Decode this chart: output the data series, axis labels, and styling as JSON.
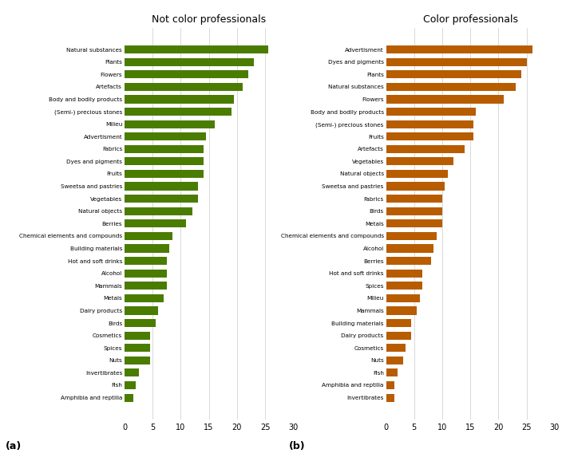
{
  "left_title": "Not color professionals",
  "right_title": "Color professionals",
  "left_label": "(a)",
  "right_label": "(b)",
  "left_color": "#4a7c00",
  "right_color": "#b85c00",
  "xlim": [
    0,
    30
  ],
  "xticks": [
    0,
    5,
    10,
    15,
    20,
    25,
    30
  ],
  "left_categories": [
    "Natural substances",
    "Plants",
    "Flowers",
    "Artefacts",
    "Body and bodily products",
    "(Semi-) precious stones",
    "Milieu",
    "Advertisment",
    "Fabrics",
    "Dyes and pigments",
    "Fruits",
    "Sweetsa and pastries",
    "Vegetables",
    "Natural objects",
    "Berries",
    "Chemical elements and compounds",
    "Building materials",
    "Hot and soft drinks",
    "Alcohol",
    "Mammals",
    "Metals",
    "Dairy products",
    "Birds",
    "Cosmetics",
    "Spices",
    "Nuts",
    "Invertibrates",
    "Fish",
    "Amphibia and reptilia"
  ],
  "left_values": [
    25.5,
    23.0,
    22.0,
    21.0,
    19.5,
    19.0,
    16.0,
    14.5,
    14.0,
    14.0,
    14.0,
    13.0,
    13.0,
    12.0,
    11.0,
    8.5,
    8.0,
    7.5,
    7.5,
    7.5,
    7.0,
    6.0,
    5.5,
    4.5,
    4.5,
    4.5,
    2.5,
    2.0,
    1.5
  ],
  "right_categories": [
    "Advertisment",
    "Dyes and pigments",
    "Plants",
    "Natural substances",
    "Flowers",
    "Body and bodily products",
    "(Semi-) precious stones",
    "Fruits",
    "Artefacts",
    "Vegetables",
    "Natural objects",
    "Sweetsa and pastries",
    "Fabrics",
    "Birds",
    "Metals",
    "Chemical elements and compounds",
    "Alcohol",
    "Berries",
    "Hot and soft drinks",
    "Spices",
    "Milieu",
    "Mammals",
    "Building materials",
    "Dairy products",
    "Cosmetics",
    "Nuts",
    "Fish",
    "Amphibia and reptilia",
    "Invertibrates"
  ],
  "right_values": [
    26.0,
    25.0,
    24.0,
    23.0,
    21.0,
    16.0,
    15.5,
    15.5,
    14.0,
    12.0,
    11.0,
    10.5,
    10.0,
    10.0,
    10.0,
    9.0,
    8.5,
    8.0,
    6.5,
    6.5,
    6.0,
    5.5,
    4.5,
    4.5,
    3.5,
    3.0,
    2.0,
    1.5,
    1.5
  ]
}
